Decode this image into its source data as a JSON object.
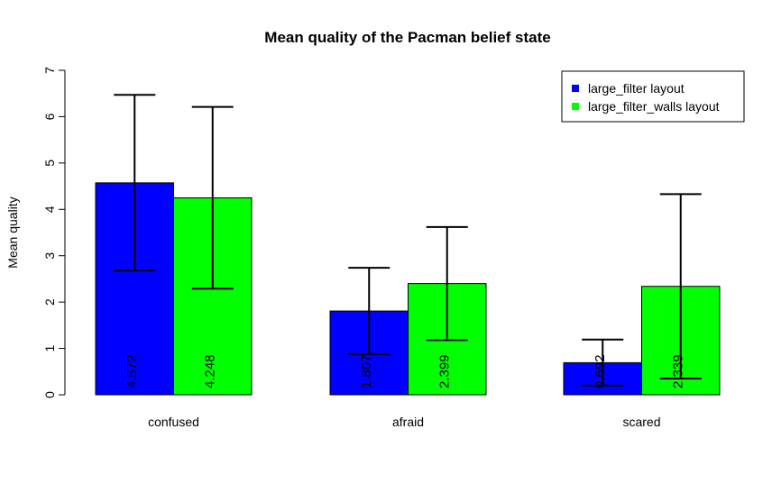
{
  "chart_data": {
    "type": "bar",
    "title": "Mean quality of the Pacman belief state",
    "xlabel": "",
    "ylabel": "Mean quality",
    "ylim": [
      0,
      7
    ],
    "yticks": [
      "0",
      "1",
      "2",
      "3",
      "4",
      "5",
      "6",
      "7"
    ],
    "categories": [
      "confused",
      "afraid",
      "scared"
    ],
    "series": [
      {
        "name": "large_filter layout",
        "color": "#0000ff",
        "values": [
          4.572,
          1.807,
          0.692
        ],
        "labels": [
          "4.572",
          "1.807",
          "0.692"
        ],
        "error_low": [
          2.68,
          0.88,
          0.2
        ],
        "error_high": [
          6.47,
          2.74,
          1.19
        ]
      },
      {
        "name": "large_filter_walls layout",
        "color": "#00ff00",
        "values": [
          4.248,
          2.399,
          2.339
        ],
        "labels": [
          "4.248",
          "2.399",
          "2.339"
        ],
        "error_low": [
          2.29,
          1.18,
          0.35
        ],
        "error_high": [
          6.21,
          3.62,
          4.33
        ]
      }
    ],
    "legend": {
      "position": "top-right"
    },
    "grid": false
  }
}
